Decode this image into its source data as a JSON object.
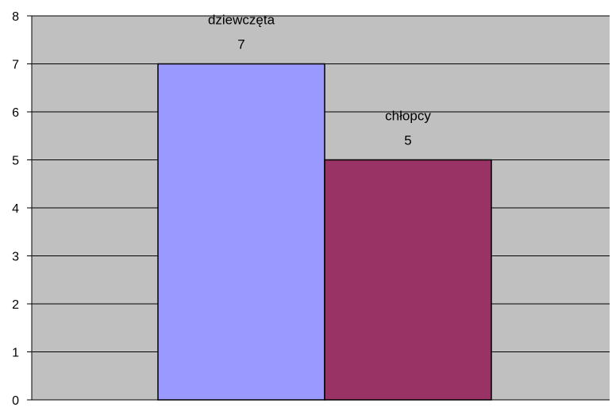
{
  "chart_data": {
    "type": "bar",
    "categories": [
      "dziewczęta",
      "chłopcy"
    ],
    "series": [
      {
        "values": [
          7,
          5
        ]
      }
    ],
    "value_labels": [
      "7",
      "5"
    ],
    "ylim": [
      0,
      8
    ],
    "yticks": [
      "0",
      "1",
      "2",
      "3",
      "4",
      "5",
      "6",
      "7",
      "8"
    ],
    "grid": true,
    "legend": "none",
    "colors": {
      "plot_background": "#c0c0c0",
      "gridline": "#000000",
      "bars": [
        "#9999ff",
        "#993366"
      ]
    }
  }
}
